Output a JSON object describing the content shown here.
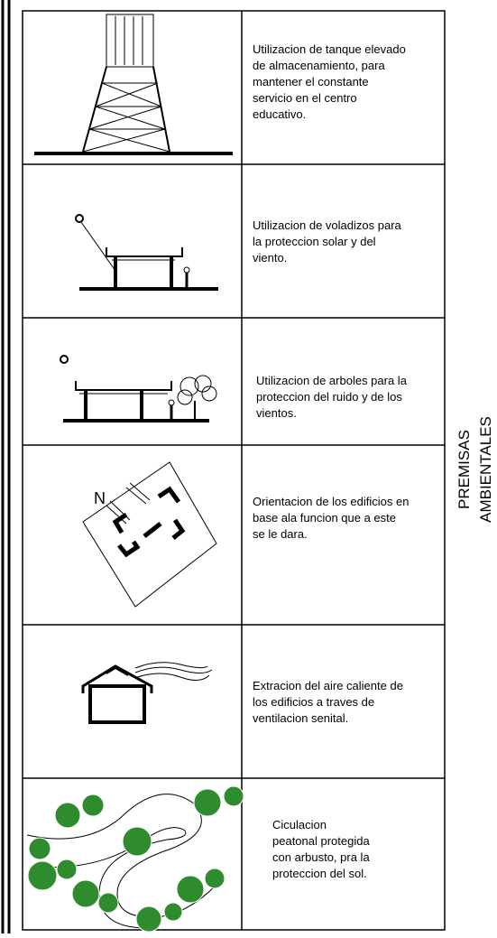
{
  "rows": [
    {
      "lines": [
        "Utilizacion de tanque elevado",
        "de almacenamiento, para",
        "mantener el constante",
        "servicio en el centro",
        "educativo."
      ]
    },
    {
      "lines": [
        "Utilizacion de voladizos para",
        "la proteccion solar y del",
        "viento."
      ]
    },
    {
      "lines": [
        "Utilizacion de arboles para la",
        "proteccion del ruido y de los",
        "vientos."
      ]
    },
    {
      "lines": [
        "Orientacion de los edificios en",
        "base ala funcion que a este",
        "se le dara."
      ],
      "north_label": "N"
    },
    {
      "lines": [
        "Extracion del aire caliente de",
        "los edificios a traves de",
        "ventilacion senital."
      ]
    },
    {
      "lines": [
        "Ciculacion",
        "peatonal protegida",
        "con arbusto, pra la",
        "proteccion del sol."
      ]
    }
  ],
  "side_label": [
    "PREMISAS",
    "AMBIENTALES"
  ]
}
